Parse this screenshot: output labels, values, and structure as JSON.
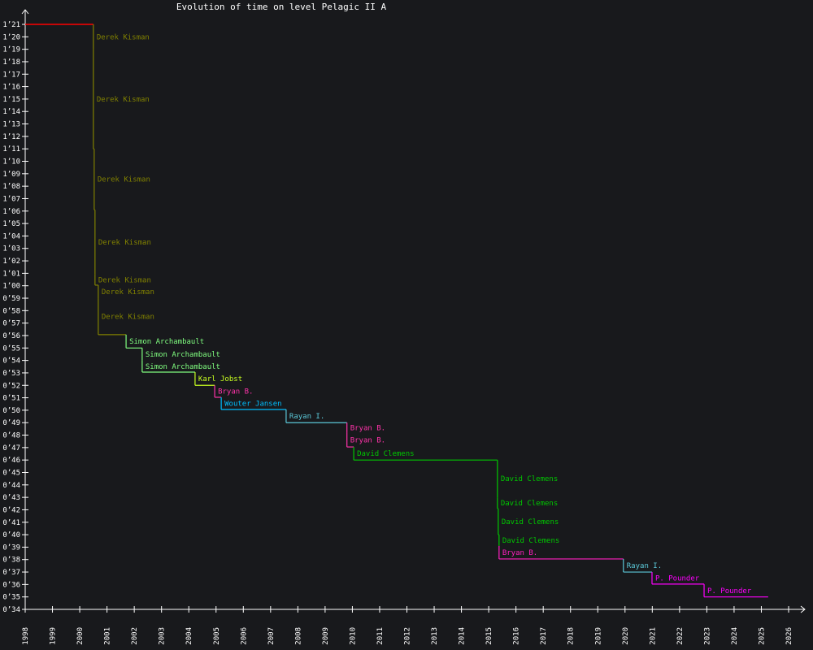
{
  "chart_data": {
    "type": "line",
    "title": "Evolution of time on level Pelagic II A",
    "xlabel": "",
    "ylabel": "",
    "xlim": [
      1998,
      2026
    ],
    "ylim": [
      34,
      81
    ],
    "x_ticks": [
      "1998",
      "1999",
      "2000",
      "2001",
      "2002",
      "2003",
      "2004",
      "2005",
      "2006",
      "2007",
      "2008",
      "2009",
      "2010",
      "2011",
      "2012",
      "2013",
      "2014",
      "2015",
      "2016",
      "2017",
      "2018",
      "2019",
      "2020",
      "2021",
      "2022",
      "2023",
      "2024",
      "2025",
      "2026"
    ],
    "y_ticks": [
      "0’34",
      "0’35",
      "0’36",
      "0’37",
      "0’38",
      "0’39",
      "0’40",
      "0’41",
      "0’42",
      "0’43",
      "0’44",
      "0’45",
      "0’46",
      "0’47",
      "0’48",
      "0’49",
      "0’50",
      "0’51",
      "0’52",
      "0’53",
      "0’54",
      "0’55",
      "0’56",
      "0’57",
      "0’58",
      "0’59",
      "1’00",
      "1’01",
      "1’02",
      "1’03",
      "1’04",
      "1’05",
      "1’06",
      "1’07",
      "1’08",
      "1’09",
      "1’10",
      "1’11",
      "1’12",
      "1’13",
      "1’14",
      "1’15",
      "1’16",
      "1’17",
      "1’18",
      "1’19",
      "1’20",
      "1’21"
    ],
    "initial": {
      "date": 1998.0,
      "time": 81.0,
      "color": "#ff0000"
    },
    "end_date": 2025.25,
    "records": [
      {
        "date": 2000.5,
        "time": 79.0,
        "holder": "Derek Kisman",
        "color": "#808000"
      },
      {
        "date": 2000.5,
        "time": 71.0,
        "holder": "Derek Kisman",
        "color": "#808000"
      },
      {
        "date": 2000.53,
        "time": 66.1,
        "holder": "Derek Kisman",
        "color": "#808000"
      },
      {
        "date": 2000.56,
        "time": 60.9,
        "holder": "Derek Kisman",
        "color": "#808000"
      },
      {
        "date": 2000.56,
        "time": 60.05,
        "holder": "Derek Kisman",
        "color": "#808000"
      },
      {
        "date": 2000.68,
        "time": 59.0,
        "holder": "Derek Kisman",
        "color": "#808000"
      },
      {
        "date": 2000.68,
        "time": 56.07,
        "holder": "Derek Kisman",
        "color": "#808000"
      },
      {
        "date": 2001.7,
        "time": 55.0,
        "holder": "Simon Archambault",
        "color": "#80ff80"
      },
      {
        "date": 2002.29,
        "time": 54.0,
        "holder": "Simon Archambault",
        "color": "#80ff80"
      },
      {
        "date": 2002.29,
        "time": 53.06,
        "holder": "Simon Archambault",
        "color": "#80ff80"
      },
      {
        "date": 2004.23,
        "time": 52.0,
        "holder": "Karl Jobst",
        "color": "#c8ff20"
      },
      {
        "date": 2004.95,
        "time": 51.04,
        "holder": "Bryan B.",
        "color": "#ff33aa"
      },
      {
        "date": 2005.19,
        "time": 50.06,
        "holder": "Wouter Jansen",
        "color": "#00bfff"
      },
      {
        "date": 2007.57,
        "time": 49.0,
        "holder": "Rayan I.",
        "color": "#5bc8d8"
      },
      {
        "date": 2009.8,
        "time": 48.2,
        "holder": "Bryan B.",
        "color": "#ff33aa"
      },
      {
        "date": 2009.8,
        "time": 47.05,
        "holder": "Bryan B.",
        "color": "#ff33aa"
      },
      {
        "date": 2010.05,
        "time": 46.0,
        "holder": "David Clemens",
        "color": "#00c800"
      },
      {
        "date": 2015.32,
        "time": 43.0,
        "holder": "David Clemens",
        "color": "#00c800"
      },
      {
        "date": 2015.32,
        "time": 42.1,
        "holder": "David Clemens",
        "color": "#00c800"
      },
      {
        "date": 2015.35,
        "time": 40.0,
        "holder": "David Clemens",
        "color": "#00c800"
      },
      {
        "date": 2015.38,
        "time": 39.1,
        "holder": "David Clemens",
        "color": "#00c800"
      },
      {
        "date": 2015.38,
        "time": 38.05,
        "holder": "Bryan B.",
        "color": "#ff20c0"
      },
      {
        "date": 2019.94,
        "time": 37.0,
        "holder": "Rayan I.",
        "color": "#5bc8d8"
      },
      {
        "date": 2020.99,
        "time": 36.03,
        "holder": "P. Pounder",
        "color": "#ff00ff"
      },
      {
        "date": 2022.9,
        "time": 35.0,
        "holder": "P. Pounder",
        "color": "#ff00ff"
      }
    ]
  }
}
